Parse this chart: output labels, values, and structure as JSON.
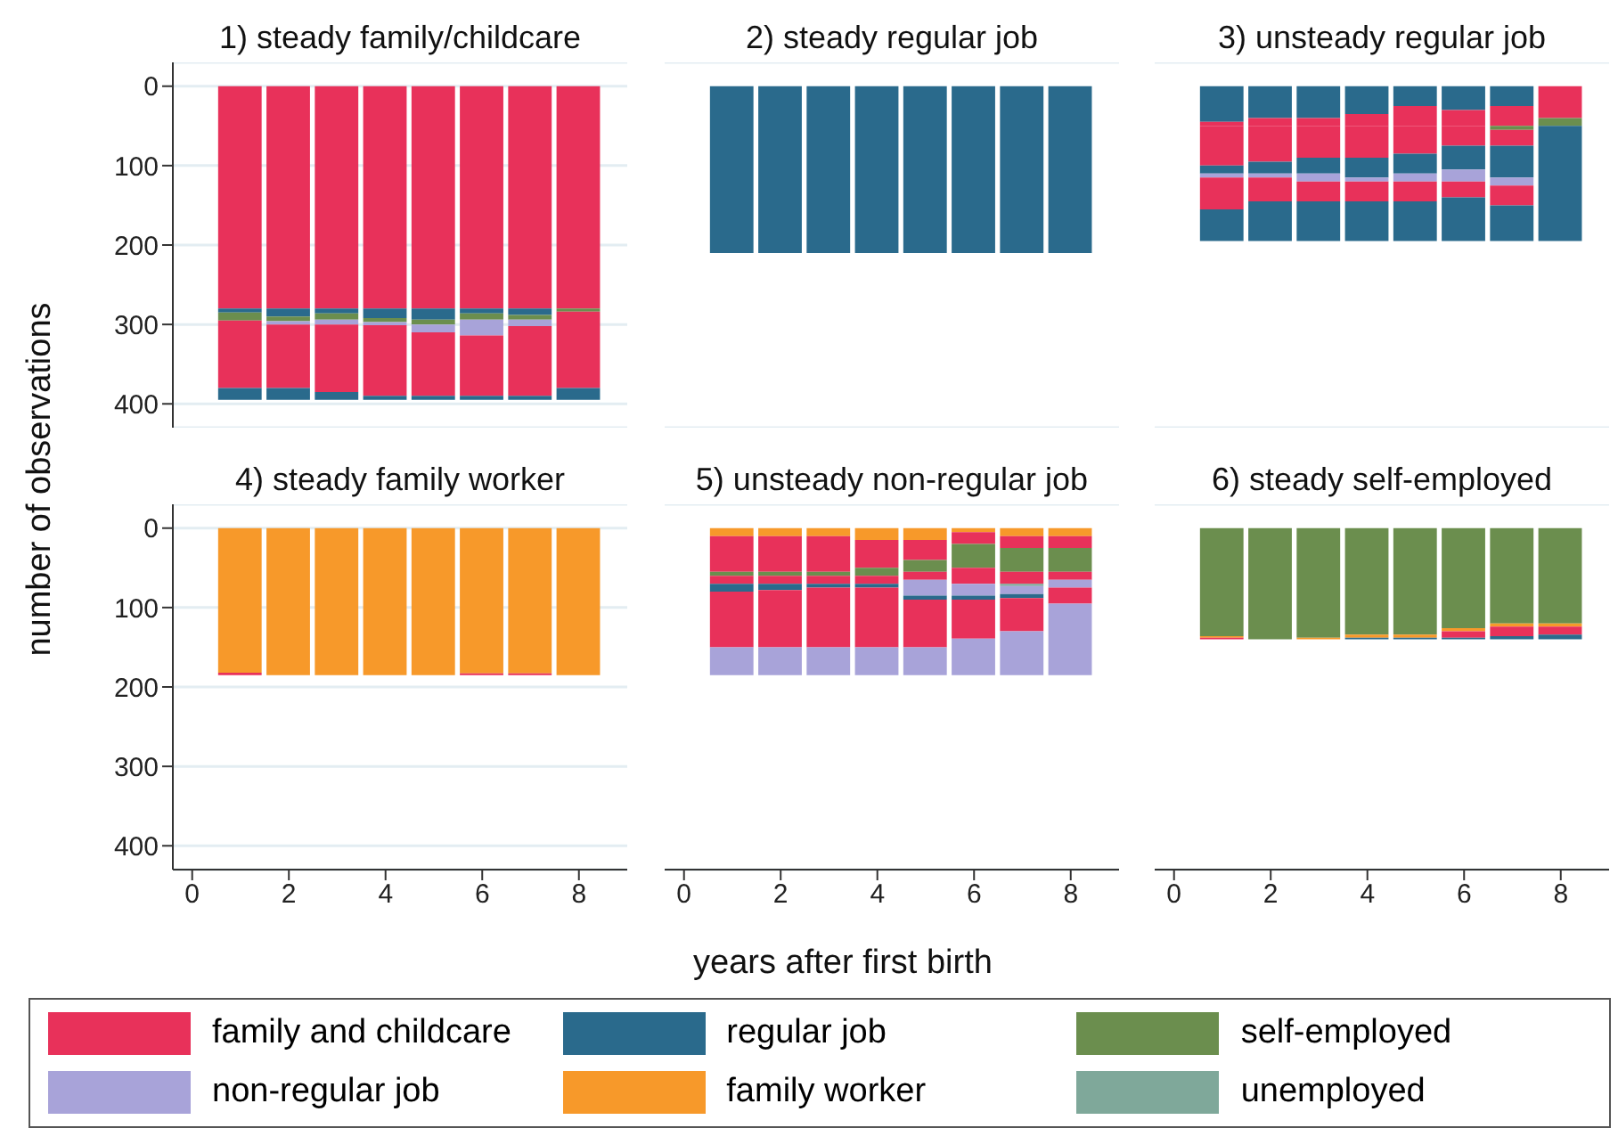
{
  "chart_data": [
    {
      "type": "bar",
      "title": "1) steady family/childcare",
      "ylabel": "number of observations",
      "x": [
        1,
        2,
        3,
        4,
        5,
        6,
        7,
        8
      ],
      "stacked": true,
      "xlim": [
        -0.4,
        9
      ],
      "ylim": [
        430,
        -30
      ],
      "xticks": [
        0,
        2,
        4,
        6,
        8
      ],
      "yticks": [
        0,
        100,
        200,
        300,
        400
      ],
      "grid": "y",
      "tick_labels": "y",
      "legend": "bottom",
      "series": [
        {
          "name": "family and childcare",
          "color": "#e8315a",
          "values": [
            280,
            280,
            280,
            280,
            280,
            280,
            280,
            280
          ]
        },
        {
          "name": "regular job",
          "color": "#2a6a8c",
          "values": [
            5,
            10,
            6,
            12,
            14,
            6,
            8,
            0
          ]
        },
        {
          "name": "self-employed",
          "color": "#6b8e4e",
          "values": [
            10,
            6,
            8,
            5,
            6,
            8,
            6,
            4
          ]
        },
        {
          "name": "non-regular job",
          "color": "#a8a3d9",
          "values": [
            0,
            4,
            6,
            4,
            10,
            20,
            8,
            0
          ]
        },
        {
          "color": "#e8315a",
          "values": [
            85,
            80,
            85,
            89,
            80,
            76,
            88,
            96
          ]
        },
        {
          "color": "#2a6a8c",
          "values": [
            15,
            15,
            10,
            5,
            5,
            5,
            5,
            15
          ]
        }
      ]
    },
    {
      "type": "bar",
      "title": "2) steady regular job",
      "x": [
        1,
        2,
        3,
        4,
        5,
        6,
        7,
        8
      ],
      "stacked": true,
      "xlim": [
        -0.4,
        9
      ],
      "ylim": [
        430,
        -30
      ],
      "xticks": [
        0,
        2,
        4,
        6,
        8
      ],
      "yticks": [
        0,
        100,
        200,
        300,
        400
      ],
      "grid": "y",
      "tick_labels": false,
      "series": [
        {
          "name": "regular job",
          "color": "#2a6a8c",
          "values": [
            210,
            210,
            210,
            210,
            210,
            210,
            210,
            210
          ]
        }
      ]
    },
    {
      "type": "bar",
      "title": "3) unsteady regular job",
      "x": [
        1,
        2,
        3,
        4,
        5,
        6,
        7,
        8
      ],
      "stacked": true,
      "xlim": [
        -0.4,
        9
      ],
      "ylim": [
        430,
        -30
      ],
      "xticks": [
        0,
        2,
        4,
        6,
        8
      ],
      "yticks": [
        0,
        100,
        200,
        300,
        400
      ],
      "grid": "y",
      "tick_labels": false,
      "series": [
        {
          "name": "regular job",
          "color": "#2a6a8c",
          "values": [
            45,
            40,
            40,
            35,
            25,
            30,
            25,
            0
          ]
        },
        {
          "name": "family and childcare",
          "color": "#e8315a",
          "values": [
            5,
            10,
            10,
            15,
            25,
            20,
            25,
            40
          ]
        },
        {
          "name": "self-employed",
          "color": "#6b8e4e",
          "values": [
            0,
            0,
            0,
            0,
            0,
            0,
            5,
            10
          ]
        },
        {
          "color": "#e8315a",
          "values": [
            50,
            45,
            40,
            40,
            35,
            25,
            20,
            0
          ]
        },
        {
          "color": "#2a6a8c",
          "values": [
            10,
            15,
            20,
            25,
            25,
            30,
            40,
            145
          ]
        },
        {
          "name": "non-regular job",
          "color": "#a8a3d9",
          "values": [
            5,
            5,
            10,
            5,
            10,
            15,
            10,
            0
          ]
        },
        {
          "color": "#e8315a",
          "values": [
            40,
            30,
            25,
            25,
            25,
            20,
            25,
            0
          ]
        },
        {
          "color": "#2a6a8c",
          "values": [
            40,
            50,
            50,
            50,
            50,
            55,
            45,
            0
          ]
        }
      ]
    },
    {
      "type": "bar",
      "title": "4) steady family worker",
      "x": [
        1,
        2,
        3,
        4,
        5,
        6,
        7,
        8
      ],
      "stacked": true,
      "xlim": [
        -0.4,
        9
      ],
      "ylim": [
        430,
        -30
      ],
      "xticks": [
        0,
        2,
        4,
        6,
        8
      ],
      "yticks": [
        0,
        100,
        200,
        300,
        400
      ],
      "grid": "y",
      "series": [
        {
          "name": "family worker",
          "color": "#f7992a",
          "values": [
            182,
            185,
            185,
            185,
            185,
            183,
            183,
            185
          ]
        },
        {
          "name": "family and childcare",
          "color": "#e8315a",
          "values": [
            3,
            0,
            0,
            0,
            0,
            2,
            2,
            0
          ]
        }
      ]
    },
    {
      "type": "bar",
      "title": "5) unsteady non-regular job",
      "xlabel": "years after first birth",
      "x": [
        1,
        2,
        3,
        4,
        5,
        6,
        7,
        8
      ],
      "stacked": true,
      "xlim": [
        -0.4,
        9
      ],
      "ylim": [
        430,
        -30
      ],
      "xticks": [
        0,
        2,
        4,
        6,
        8
      ],
      "yticks": [
        0,
        100,
        200,
        300,
        400
      ],
      "grid": "y",
      "tick_labels": "x",
      "series": [
        {
          "name": "family worker",
          "color": "#f7992a",
          "values": [
            10,
            10,
            10,
            15,
            15,
            5,
            10,
            10
          ]
        },
        {
          "name": "family and childcare",
          "color": "#e8315a",
          "values": [
            45,
            45,
            45,
            35,
            25,
            15,
            15,
            15
          ]
        },
        {
          "name": "self-employed",
          "color": "#6b8e4e",
          "values": [
            5,
            5,
            5,
            10,
            15,
            30,
            30,
            30
          ]
        },
        {
          "color": "#e8315a",
          "values": [
            10,
            10,
            10,
            10,
            10,
            20,
            15,
            10
          ]
        },
        {
          "name": "unemployed",
          "color": "#7fa89a",
          "values": [
            0,
            0,
            0,
            0,
            0,
            0,
            3,
            0
          ]
        },
        {
          "name": "non-regular job",
          "color": "#a8a3d9",
          "values": [
            0,
            0,
            0,
            0,
            20,
            15,
            10,
            10
          ]
        },
        {
          "name": "regular job",
          "color": "#2a6a8c",
          "values": [
            10,
            8,
            5,
            5,
            5,
            5,
            5,
            0
          ]
        },
        {
          "color": "#e8315a",
          "values": [
            70,
            72,
            75,
            75,
            60,
            49,
            42,
            20
          ]
        },
        {
          "color": "#a8a3d9",
          "values": [
            35,
            35,
            35,
            35,
            35,
            46,
            55,
            90
          ]
        }
      ]
    },
    {
      "type": "bar",
      "title": "6) steady self-employed",
      "x": [
        1,
        2,
        3,
        4,
        5,
        6,
        7,
        8
      ],
      "stacked": true,
      "xlim": [
        -0.4,
        9
      ],
      "ylim": [
        430,
        -30
      ],
      "xticks": [
        0,
        2,
        4,
        6,
        8
      ],
      "yticks": [
        0,
        100,
        200,
        300,
        400
      ],
      "grid": "y",
      "tick_labels": "x",
      "series": [
        {
          "name": "self-employed",
          "color": "#6b8e4e",
          "values": [
            136,
            140,
            138,
            134,
            134,
            126,
            120,
            120
          ]
        },
        {
          "name": "family worker",
          "color": "#f7992a",
          "values": [
            2,
            0,
            2,
            4,
            4,
            4,
            4,
            4
          ]
        },
        {
          "name": "family and childcare",
          "color": "#e8315a",
          "values": [
            2,
            0,
            0,
            0,
            0,
            8,
            12,
            10
          ]
        },
        {
          "name": "regular job",
          "color": "#2a6a8c",
          "values": [
            0,
            0,
            0,
            2,
            2,
            2,
            4,
            6
          ]
        }
      ]
    }
  ]
}
